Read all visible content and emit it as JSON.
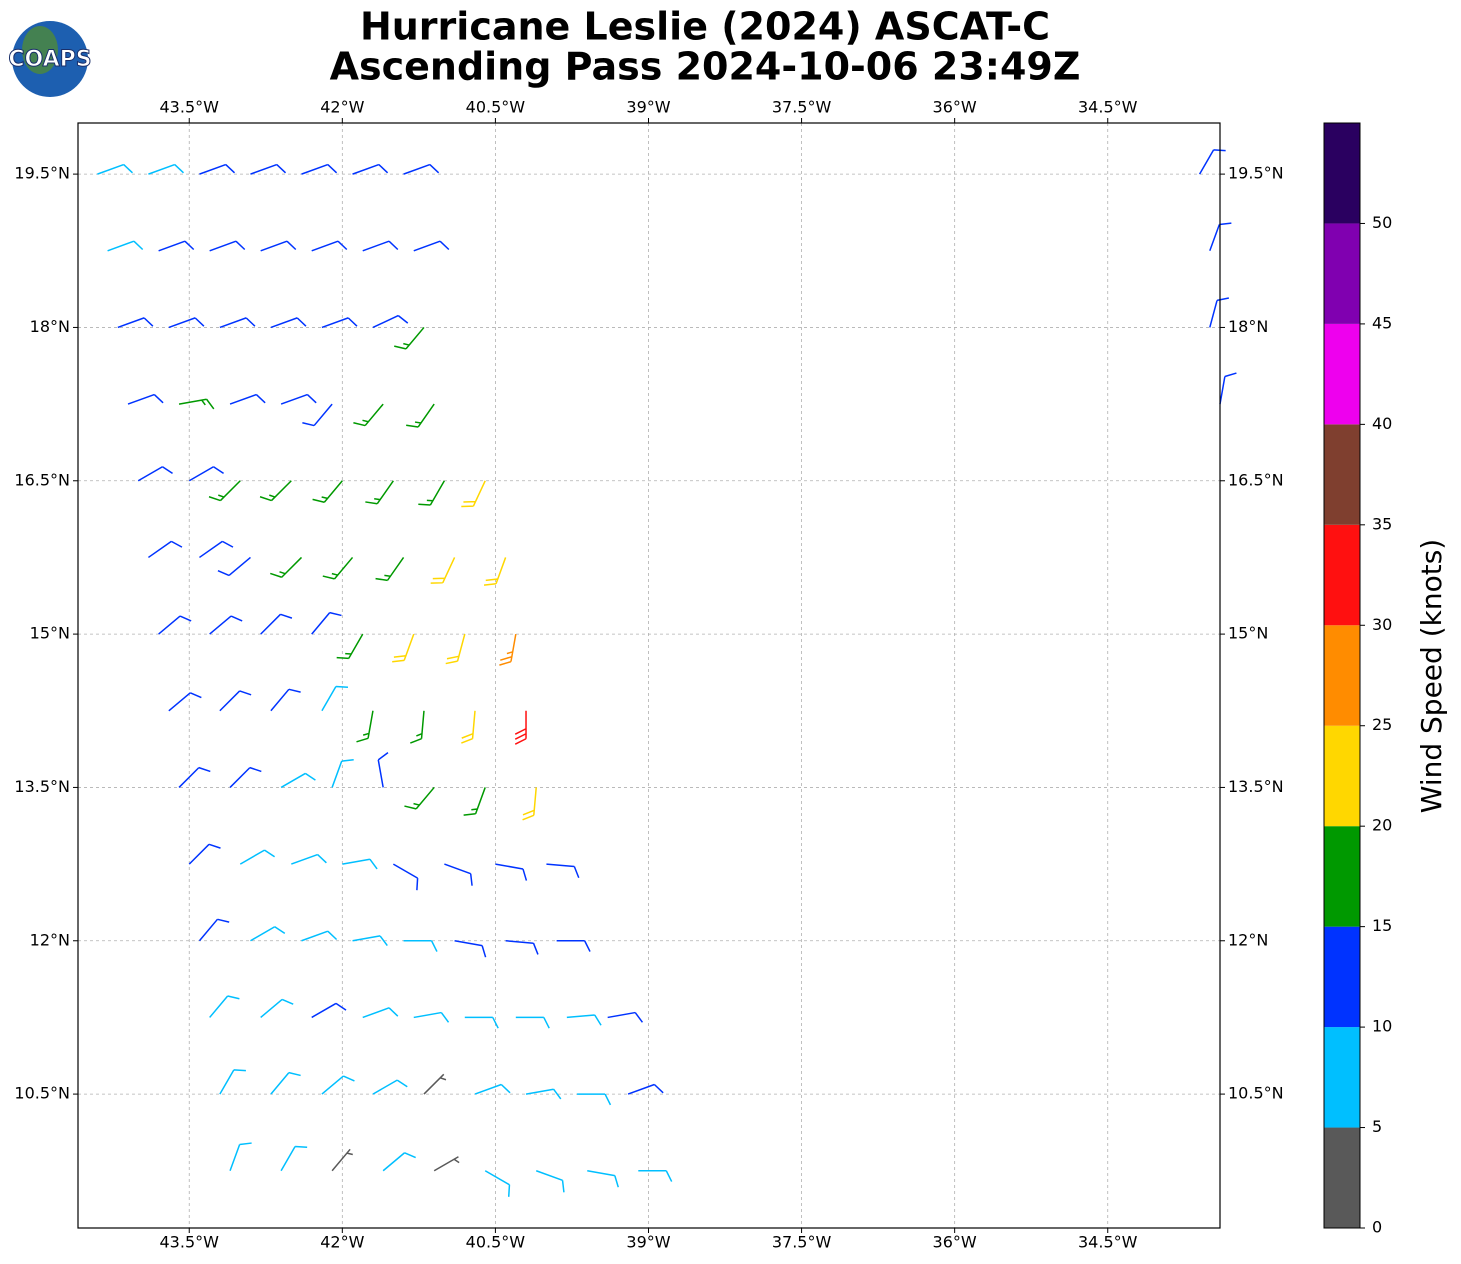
{
  "logo": "COAPS",
  "chart_data": {
    "type": "wind_barbs",
    "title": [
      "Hurricane Leslie (2024) ASCAT-C",
      "Ascending Pass 2024-10-06 23:49Z"
    ],
    "xlim": [
      -44.59,
      -33.4
    ],
    "ylim": [
      9.19,
      20.0
    ],
    "xticks": [
      {
        "value": -43.5,
        "label": "43.5°W"
      },
      {
        "value": -42,
        "label": "42°W"
      },
      {
        "value": -40.5,
        "label": "40.5°W"
      },
      {
        "value": -39,
        "label": "39°W"
      },
      {
        "value": -37.5,
        "label": "37.5°W"
      },
      {
        "value": -36,
        "label": "36°W"
      },
      {
        "value": -34.5,
        "label": "34.5°W"
      }
    ],
    "yticks": [
      {
        "value": 19.5,
        "label": "19.5°N"
      },
      {
        "value": 18,
        "label": "18°N"
      },
      {
        "value": 16.5,
        "label": "16.5°N"
      },
      {
        "value": 15,
        "label": "15°N"
      },
      {
        "value": 13.5,
        "label": "13.5°N"
      },
      {
        "value": 12,
        "label": "12°N"
      },
      {
        "value": 10.5,
        "label": "10.5°N"
      }
    ],
    "grid": true,
    "colorbar": {
      "label": "Wind Speed (knots)",
      "lim": [
        0,
        55
      ],
      "ticks": [
        0,
        5,
        10,
        15,
        20,
        25,
        30,
        35,
        40,
        45,
        50
      ],
      "colors": [
        "#595959",
        "#00bfff",
        "#0033ff",
        "#009900",
        "#ffd700",
        "#ff8c00",
        "#ff1010",
        "#7f3f2f",
        "#ee00ee",
        "#8000b0",
        "#2a0060"
      ]
    },
    "barbs": {
      "lon": [
        -44.4,
        -43.9,
        -43.4,
        -42.9,
        -42.4,
        -41.9,
        -41.4,
        -44.3,
        -43.8,
        -43.3,
        -42.8,
        -42.3,
        -41.8,
        -41.3,
        -44.2,
        -43.7,
        -43.2,
        -42.7,
        -42.2,
        -41.7,
        -41.2,
        -44.1,
        -43.6,
        -43.1,
        -42.6,
        -42.1,
        -41.6,
        -41.1,
        -44.0,
        -43.5,
        -43.0,
        -42.5,
        -42.0,
        -41.5,
        -41.0,
        -40.6,
        -43.9,
        -43.4,
        -42.9,
        -42.4,
        -41.9,
        -41.4,
        -40.9,
        -40.4,
        -43.8,
        -43.3,
        -42.8,
        -42.3,
        -41.8,
        -41.3,
        -40.8,
        -40.3,
        -43.7,
        -43.2,
        -42.7,
        -42.2,
        -41.7,
        -41.2,
        -40.7,
        -40.2,
        -43.6,
        -43.1,
        -42.6,
        -42.1,
        -41.6,
        -41.1,
        -40.6,
        -40.1,
        -43.5,
        -43.0,
        -42.5,
        -42.0,
        -41.5,
        -41.0,
        -40.5,
        -40.0,
        -43.4,
        -42.9,
        -42.4,
        -41.9,
        -41.4,
        -40.9,
        -40.4,
        -39.9,
        -43.3,
        -42.8,
        -42.3,
        -41.8,
        -41.3,
        -40.8,
        -40.3,
        -39.8,
        -39.4,
        -43.2,
        -42.7,
        -42.2,
        -41.7,
        -41.2,
        -40.7,
        -40.2,
        -39.7,
        -39.2,
        -43.1,
        -42.6,
        -42.1,
        -41.6,
        -41.1,
        -40.6,
        -40.1,
        -39.6,
        -39.1,
        -33.6,
        -33.5,
        -33.5,
        -33.4
      ],
      "lat": [
        19.5,
        19.5,
        19.5,
        19.5,
        19.5,
        19.5,
        19.5,
        18.75,
        18.75,
        18.75,
        18.75,
        18.75,
        18.75,
        18.75,
        18,
        18,
        18,
        18,
        18,
        18,
        18,
        17.25,
        17.25,
        17.25,
        17.25,
        17.25,
        17.25,
        17.25,
        16.5,
        16.5,
        16.5,
        16.5,
        16.5,
        16.5,
        16.5,
        16.5,
        15.75,
        15.75,
        15.75,
        15.75,
        15.75,
        15.75,
        15.75,
        15.75,
        15,
        15,
        15,
        15,
        15,
        15,
        15,
        15,
        14.25,
        14.25,
        14.25,
        14.25,
        14.25,
        14.25,
        14.25,
        14.25,
        13.5,
        13.5,
        13.5,
        13.5,
        13.5,
        13.5,
        13.5,
        13.5,
        12.75,
        12.75,
        12.75,
        12.75,
        12.75,
        12.75,
        12.75,
        12.75,
        12,
        12,
        12,
        12,
        12,
        12,
        12,
        12,
        11.25,
        11.25,
        11.25,
        11.25,
        11.25,
        11.25,
        11.25,
        11.25,
        11.25,
        10.5,
        10.5,
        10.5,
        10.5,
        10.5,
        10.5,
        10.5,
        10.5,
        10.5,
        9.75,
        9.75,
        9.75,
        9.75,
        9.75,
        9.75,
        9.75,
        9.75,
        9.75,
        19.5,
        18.75,
        18,
        17.25
      ],
      "speed": [
        8,
        8,
        12,
        12,
        12,
        12,
        12,
        8,
        12,
        12,
        12,
        12,
        12,
        12,
        12,
        12,
        12,
        12,
        12,
        12,
        17,
        12,
        17,
        12,
        12,
        12,
        17,
        17,
        12,
        12,
        17,
        17,
        17,
        17,
        17,
        22,
        12,
        12,
        12,
        17,
        17,
        17,
        22,
        22,
        12,
        12,
        12,
        12,
        17,
        22,
        22,
        27,
        12,
        12,
        12,
        8,
        17,
        17,
        22,
        32,
        12,
        12,
        8,
        8,
        12,
        17,
        17,
        22,
        12,
        8,
        8,
        8,
        12,
        12,
        12,
        12,
        12,
        8,
        8,
        8,
        8,
        12,
        12,
        12,
        8,
        8,
        12,
        8,
        8,
        8,
        8,
        8,
        12,
        8,
        8,
        8,
        8,
        3,
        8,
        8,
        8,
        12,
        8,
        8,
        3,
        8,
        3,
        8,
        8,
        8,
        8,
        12,
        12,
        12,
        12
      ],
      "direction": [
        70,
        70,
        70,
        70,
        70,
        70,
        70,
        70,
        70,
        70,
        70,
        70,
        70,
        70,
        70,
        70,
        70,
        70,
        70,
        65,
        220,
        70,
        80,
        70,
        70,
        220,
        220,
        215,
        60,
        60,
        225,
        225,
        220,
        215,
        210,
        205,
        55,
        55,
        230,
        225,
        220,
        215,
        205,
        200,
        50,
        50,
        45,
        40,
        210,
        200,
        195,
        190,
        50,
        45,
        40,
        30,
        190,
        185,
        185,
        180,
        45,
        45,
        60,
        20,
        350,
        220,
        200,
        185,
        45,
        60,
        70,
        80,
        120,
        110,
        100,
        95,
        40,
        60,
        70,
        80,
        90,
        100,
        95,
        90,
        40,
        50,
        60,
        70,
        80,
        90,
        90,
        85,
        80,
        30,
        40,
        50,
        60,
        45,
        70,
        80,
        90,
        70,
        20,
        30,
        40,
        50,
        60,
        120,
        110,
        100,
        90,
        30,
        20,
        15,
        10
      ]
    }
  }
}
